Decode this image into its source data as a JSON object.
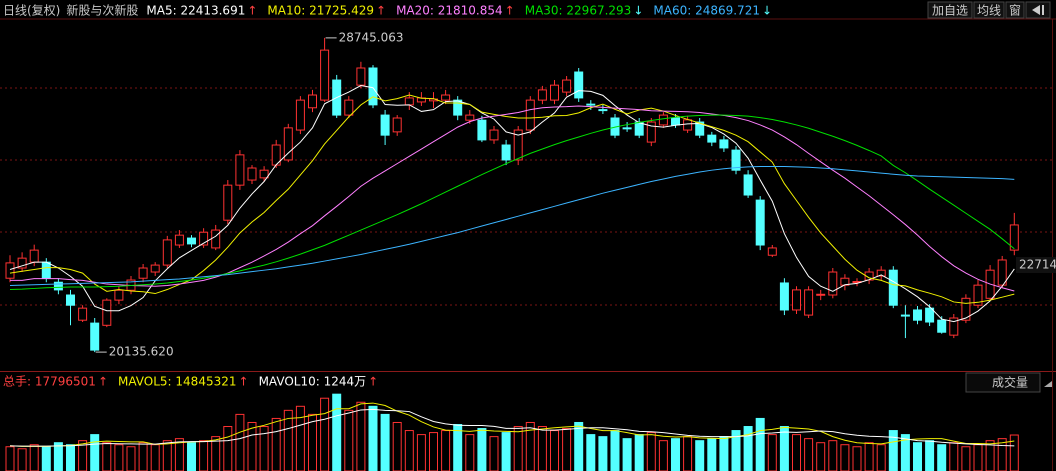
{
  "header": {
    "period": "日线(复权)",
    "sector": "新股与次新股",
    "buttons": [
      "加自选",
      "均线",
      "窗"
    ]
  },
  "chart_data": {
    "type": "candlestick",
    "up_color": "#ff3232",
    "down_color": "#54ffff",
    "ylim": [
      19700,
      29290
    ],
    "candles": [
      [
        22160,
        22790,
        22050,
        22580
      ],
      [
        22440,
        22870,
        22330,
        22710
      ],
      [
        22600,
        23080,
        22490,
        22930
      ],
      [
        22600,
        22710,
        22050,
        22160
      ],
      [
        22050,
        22160,
        21720,
        21840
      ],
      [
        21700,
        21840,
        20870,
        21420
      ],
      [
        21010,
        21420,
        20960,
        21340
      ],
      [
        20930,
        21070,
        20135.62,
        20190
      ],
      [
        20870,
        21610,
        20820,
        21560
      ],
      [
        21560,
        21940,
        21450,
        21830
      ],
      [
        21830,
        22220,
        21720,
        22110
      ],
      [
        22160,
        22550,
        22050,
        22440
      ],
      [
        22330,
        22600,
        22220,
        22520
      ],
      [
        22520,
        23320,
        22440,
        23210
      ],
      [
        23070,
        23480,
        22990,
        23340
      ],
      [
        23260,
        23340,
        23010,
        23100
      ],
      [
        23070,
        23530,
        22990,
        23420
      ],
      [
        22990,
        23620,
        22930,
        23480
      ],
      [
        23750,
        24850,
        23640,
        24710
      ],
      [
        24710,
        25670,
        24580,
        25540
      ],
      [
        24850,
        25260,
        24740,
        25180
      ],
      [
        24910,
        25230,
        24800,
        25120
      ],
      [
        25260,
        25950,
        25180,
        25810
      ],
      [
        25400,
        26390,
        25340,
        26280
      ],
      [
        26220,
        27150,
        26110,
        27040
      ],
      [
        26830,
        27320,
        26710,
        27180
      ],
      [
        27040,
        28745.063,
        26990,
        28410
      ],
      [
        27590,
        27730,
        26550,
        26630
      ],
      [
        26630,
        27150,
        26550,
        27040
      ],
      [
        27450,
        28090,
        27370,
        27920
      ],
      [
        27920,
        28000,
        26820,
        26910
      ],
      [
        26630,
        26770,
        25810,
        26080
      ],
      [
        26170,
        26630,
        26060,
        26550
      ],
      [
        26910,
        27260,
        26770,
        27100
      ],
      [
        26990,
        27260,
        26880,
        27100
      ],
      [
        27020,
        27260,
        26820,
        27070
      ],
      [
        27040,
        27320,
        26930,
        27180
      ],
      [
        27040,
        27150,
        26490,
        26630
      ],
      [
        26490,
        26770,
        26390,
        26630
      ],
      [
        26490,
        26610,
        25890,
        25950
      ],
      [
        25950,
        26330,
        25840,
        26220
      ],
      [
        25810,
        25950,
        25260,
        25400
      ],
      [
        25400,
        26330,
        25260,
        26220
      ],
      [
        26220,
        27150,
        26110,
        27040
      ],
      [
        27040,
        27430,
        26930,
        27320
      ],
      [
        27040,
        27590,
        26930,
        27450
      ],
      [
        27260,
        27700,
        27150,
        27590
      ],
      [
        27810,
        27920,
        26990,
        27100
      ],
      [
        26930,
        27040,
        26770,
        26910
      ],
      [
        26780,
        26910,
        26660,
        26770
      ],
      [
        26550,
        26660,
        26000,
        26080
      ],
      [
        26280,
        26440,
        26170,
        26260
      ],
      [
        26440,
        26550,
        26000,
        26080
      ],
      [
        25890,
        26550,
        25780,
        26440
      ],
      [
        26360,
        26710,
        26280,
        26630
      ],
      [
        26550,
        26660,
        26280,
        26360
      ],
      [
        26220,
        26610,
        26140,
        26500
      ],
      [
        26440,
        26550,
        26000,
        26080
      ],
      [
        26080,
        26170,
        25780,
        25890
      ],
      [
        25950,
        26060,
        25620,
        25730
      ],
      [
        25670,
        25780,
        25010,
        25120
      ],
      [
        24990,
        25120,
        24360,
        24440
      ],
      [
        24300,
        24410,
        22930,
        23070
      ],
      [
        22790,
        23070,
        22740,
        22990
      ],
      [
        22030,
        22160,
        21150,
        21290
      ],
      [
        21290,
        21940,
        21180,
        21840
      ],
      [
        21150,
        21940,
        21070,
        21840
      ],
      [
        21700,
        21840,
        21560,
        21720
      ],
      [
        21700,
        22440,
        21610,
        22330
      ],
      [
        21970,
        22270,
        21830,
        22160
      ],
      [
        22050,
        22160,
        21940,
        22070
      ],
      [
        22110,
        22440,
        22000,
        22330
      ],
      [
        22220,
        22490,
        22110,
        22380
      ],
      [
        22380,
        22490,
        21340,
        21420
      ],
      [
        21150,
        21420,
        20520,
        21130
      ],
      [
        21290,
        21400,
        20900,
        21010
      ],
      [
        21340,
        21450,
        20850,
        20960
      ],
      [
        21010,
        21120,
        20640,
        20680
      ],
      [
        20600,
        21180,
        20520,
        21070
      ],
      [
        21010,
        21720,
        20930,
        21610
      ],
      [
        21420,
        22110,
        21340,
        21970
      ],
      [
        21610,
        22520,
        21560,
        22380
      ],
      [
        21970,
        22770,
        21890,
        22660
      ],
      [
        22930,
        23950,
        22790,
        23620
      ]
    ],
    "ma_series": [
      {
        "legend": "MA5: 22413.691",
        "trend": "↑",
        "trend_color": "#ff4040",
        "color": "#ffffff",
        "values": [
          22400,
          22500,
          22600,
          22600,
          22440,
          22210,
          21940,
          21390,
          21270,
          21270,
          21410,
          21630,
          22090,
          22420,
          22720,
          22920,
          23120,
          23310,
          23610,
          24080,
          24470,
          24810,
          25270,
          25590,
          25890,
          26280,
          26940,
          27110,
          27260,
          27440,
          27380,
          26920,
          26900,
          26910,
          26730,
          26780,
          27000,
          27020,
          26920,
          26690,
          26520,
          26170,
          26080,
          26170,
          26440,
          26690,
          27120,
          27300,
          27280,
          27170,
          26890,
          26630,
          26420,
          26330,
          26300,
          26350,
          26390,
          26400,
          26290,
          26110,
          25860,
          25450,
          24850,
          24270,
          23380,
          22730,
          22210,
          21940,
          21800,
          21980,
          22020,
          22120,
          22250,
          22070,
          21870,
          21650,
          21380,
          21040,
          20970,
          21070,
          21260,
          21540,
          21940,
          22413.691
        ]
      },
      {
        "legend": "MA10: 21725.429",
        "trend": "↑",
        "trend_color": "#ff4040",
        "color": "#f0f000",
        "values": [
          22300,
          22350,
          22400,
          22450,
          22450,
          22400,
          22300,
          22000,
          21800,
          21850,
          21810,
          21790,
          21740,
          21850,
          21990,
          22120,
          22370,
          22660,
          23010,
          23400,
          23700,
          23960,
          24290,
          24600,
          24990,
          25380,
          25840,
          26210,
          26580,
          26910,
          27130,
          27020,
          27080,
          27180,
          27090,
          27080,
          26960,
          26960,
          26920,
          26710,
          26650,
          26590,
          26550,
          26550,
          26570,
          26610,
          26620,
          26690,
          26830,
          26930,
          26790,
          26660,
          26770,
          26820,
          26740,
          26620,
          26510,
          26410,
          26310,
          26210,
          26080,
          25900,
          25620,
          25340,
          24750,
          24290,
          23830,
          23400,
          23040,
          22680,
          22380,
          22170,
          22100,
          21980,
          21950,
          21840,
          21750,
          21650,
          21510,
          21470,
          21500,
          21560,
          21640,
          21725.429
        ]
      },
      {
        "legend": "MA20: 21810.854",
        "trend": "↑",
        "trend_color": "#ff4040",
        "color": "#ff80ff",
        "values": [
          22100,
          22100,
          22150,
          22150,
          22150,
          22120,
          22100,
          22050,
          22000,
          21980,
          21960,
          21950,
          21940,
          21960,
          22000,
          22050,
          22100,
          22190,
          22300,
          22450,
          22600,
          22770,
          22950,
          23150,
          23380,
          23600,
          23870,
          24130,
          24400,
          24680,
          24900,
          25100,
          25300,
          25500,
          25700,
          25900,
          26100,
          26300,
          26450,
          26550,
          26600,
          26650,
          26700,
          26780,
          26830,
          26850,
          26860,
          26880,
          26860,
          26840,
          26820,
          26800,
          26780,
          26750,
          26740,
          26730,
          26720,
          26700,
          26660,
          26620,
          26560,
          26480,
          26360,
          26220,
          26030,
          25820,
          25580,
          25350,
          25120,
          24900,
          24660,
          24420,
          24160,
          23900,
          23630,
          23340,
          23030,
          22750,
          22500,
          22300,
          22130,
          22000,
          21900,
          21810.854
        ]
      },
      {
        "legend": "MA30: 22967.293",
        "trend": "↓",
        "trend_color": "#54ffff",
        "color": "#00e000",
        "values": [
          21850,
          21860,
          21880,
          21900,
          21910,
          21920,
          21920,
          21920,
          21930,
          21940,
          21960,
          21980,
          22000,
          22030,
          22070,
          22110,
          22160,
          22220,
          22290,
          22360,
          22440,
          22520,
          22610,
          22710,
          22820,
          22940,
          23060,
          23200,
          23340,
          23480,
          23620,
          23760,
          23900,
          24050,
          24200,
          24360,
          24520,
          24680,
          24840,
          25000,
          25150,
          25300,
          25440,
          25580,
          25700,
          25820,
          25930,
          26030,
          26130,
          26220,
          26300,
          26370,
          26430,
          26480,
          26530,
          26570,
          26600,
          26620,
          26630,
          26630,
          26620,
          26600,
          26560,
          26510,
          26440,
          26360,
          26270,
          26160,
          26050,
          25930,
          25800,
          25660,
          25510,
          25250,
          25050,
          24830,
          24600,
          24380,
          24160,
          23940,
          23720,
          23500,
          23240,
          22967.293
        ]
      },
      {
        "legend": "MA60: 24869.721",
        "trend": "↓",
        "trend_color": "#54ffff",
        "color": "#3cb4ff",
        "values": [
          21960,
          21970,
          21980,
          21990,
          22000,
          22010,
          22020,
          22030,
          22040,
          22050,
          22060,
          22080,
          22100,
          22120,
          22140,
          22170,
          22200,
          22230,
          22260,
          22300,
          22340,
          22380,
          22420,
          22470,
          22520,
          22570,
          22630,
          22690,
          22750,
          22810,
          22880,
          22950,
          23020,
          23090,
          23170,
          23250,
          23330,
          23410,
          23500,
          23590,
          23680,
          23770,
          23860,
          23950,
          24040,
          24130,
          24220,
          24310,
          24400,
          24490,
          24570,
          24650,
          24730,
          24810,
          24880,
          24950,
          25010,
          25070,
          25120,
          25160,
          25190,
          25210,
          25220,
          25220,
          25220,
          25210,
          25200,
          25180,
          25160,
          25130,
          25100,
          25070,
          25040,
          25010,
          24980,
          24960,
          24950,
          24940,
          24930,
          24920,
          24910,
          24900,
          24890,
          24869.721
        ]
      }
    ],
    "annotations": {
      "high": "28745.063",
      "low": "20135.620",
      "last": "22714."
    }
  },
  "volume_chart": {
    "type": "bar",
    "ylim": [
      0,
      4600
    ],
    "selector": "成交量",
    "total": {
      "legend": "总手: 17796501",
      "trend": "↑",
      "trend_color": "#ff4040",
      "color": "#ff4040"
    },
    "values": [
      1200,
      1100,
      1300,
      1200,
      1400,
      1300,
      1500,
      1800,
      1400,
      1300,
      1200,
      1400,
      1300,
      1500,
      1600,
      1400,
      1500,
      1700,
      2200,
      2800,
      2400,
      2200,
      2600,
      3000,
      3200,
      2800,
      3600,
      3800,
      3000,
      3400,
      3200,
      2800,
      2400,
      2000,
      1800,
      1900,
      2000,
      2300,
      1800,
      2100,
      1700,
      1900,
      2200,
      2400,
      2200,
      2000,
      2100,
      2400,
      1800,
      1700,
      2000,
      1600,
      1800,
      1900,
      1500,
      1600,
      1700,
      1500,
      1600,
      1700,
      2000,
      2200,
      2600,
      1800,
      2200,
      1800,
      1600,
      1400,
      1500,
      1300,
      1200,
      1400,
      1300,
      2000,
      1800,
      1400,
      1500,
      1300,
      1400,
      1200,
      1300,
      1500,
      1600,
      1779.6501
    ],
    "series": [
      {
        "legend": "MAVOL5: 14845321",
        "trend": "↑",
        "trend_color": "#ff4040",
        "color": "#f0f000",
        "values": [
          1250,
          1220,
          1220,
          1220,
          1240,
          1260,
          1340,
          1440,
          1480,
          1460,
          1440,
          1440,
          1320,
          1340,
          1400,
          1440,
          1460,
          1540,
          1680,
          1920,
          2120,
          2260,
          2440,
          2600,
          2640,
          2760,
          2840,
          3080,
          3080,
          3320,
          3360,
          3240,
          2960,
          2760,
          2440,
          2180,
          2020,
          2000,
          1960,
          2020,
          1980,
          1960,
          1940,
          2020,
          2080,
          2140,
          2180,
          2220,
          2100,
          2000,
          2000,
          1900,
          1780,
          1800,
          1720,
          1680,
          1700,
          1640,
          1620,
          1600,
          1700,
          1800,
          2000,
          2060,
          2160,
          2120,
          2080,
          1960,
          1700,
          1520,
          1400,
          1360,
          1340,
          1440,
          1540,
          1580,
          1600,
          1600,
          1480,
          1360,
          1360,
          1340,
          1400,
          1484.5321
        ]
      },
      {
        "legend": "MAVOL10: 1244万",
        "trend": "↑",
        "trend_color": "#ff4040",
        "color": "#ffffff",
        "values": [
          1240,
          1230,
          1230,
          1230,
          1240,
          1250,
          1280,
          1330,
          1360,
          1350,
          1340,
          1330,
          1330,
          1390,
          1440,
          1450,
          1450,
          1480,
          1500,
          1600,
          1780,
          1850,
          1950,
          2100,
          2270,
          2440,
          2560,
          2730,
          2870,
          3020,
          3050,
          3000,
          2980,
          2940,
          2680,
          2450,
          2330,
          2260,
          2250,
          2250,
          2210,
          2110,
          2110,
          2140,
          2020,
          2020,
          2060,
          2110,
          2140,
          2140,
          2090,
          2040,
          1960,
          1940,
          1900,
          1830,
          1760,
          1720,
          1700,
          1700,
          1700,
          1740,
          1850,
          1880,
          1930,
          1910,
          1940,
          1980,
          1950,
          1840,
          1770,
          1720,
          1700,
          1670,
          1590,
          1500,
          1480,
          1420,
          1380,
          1340,
          1310,
          1290,
          1260,
          1244
        ]
      }
    ]
  }
}
